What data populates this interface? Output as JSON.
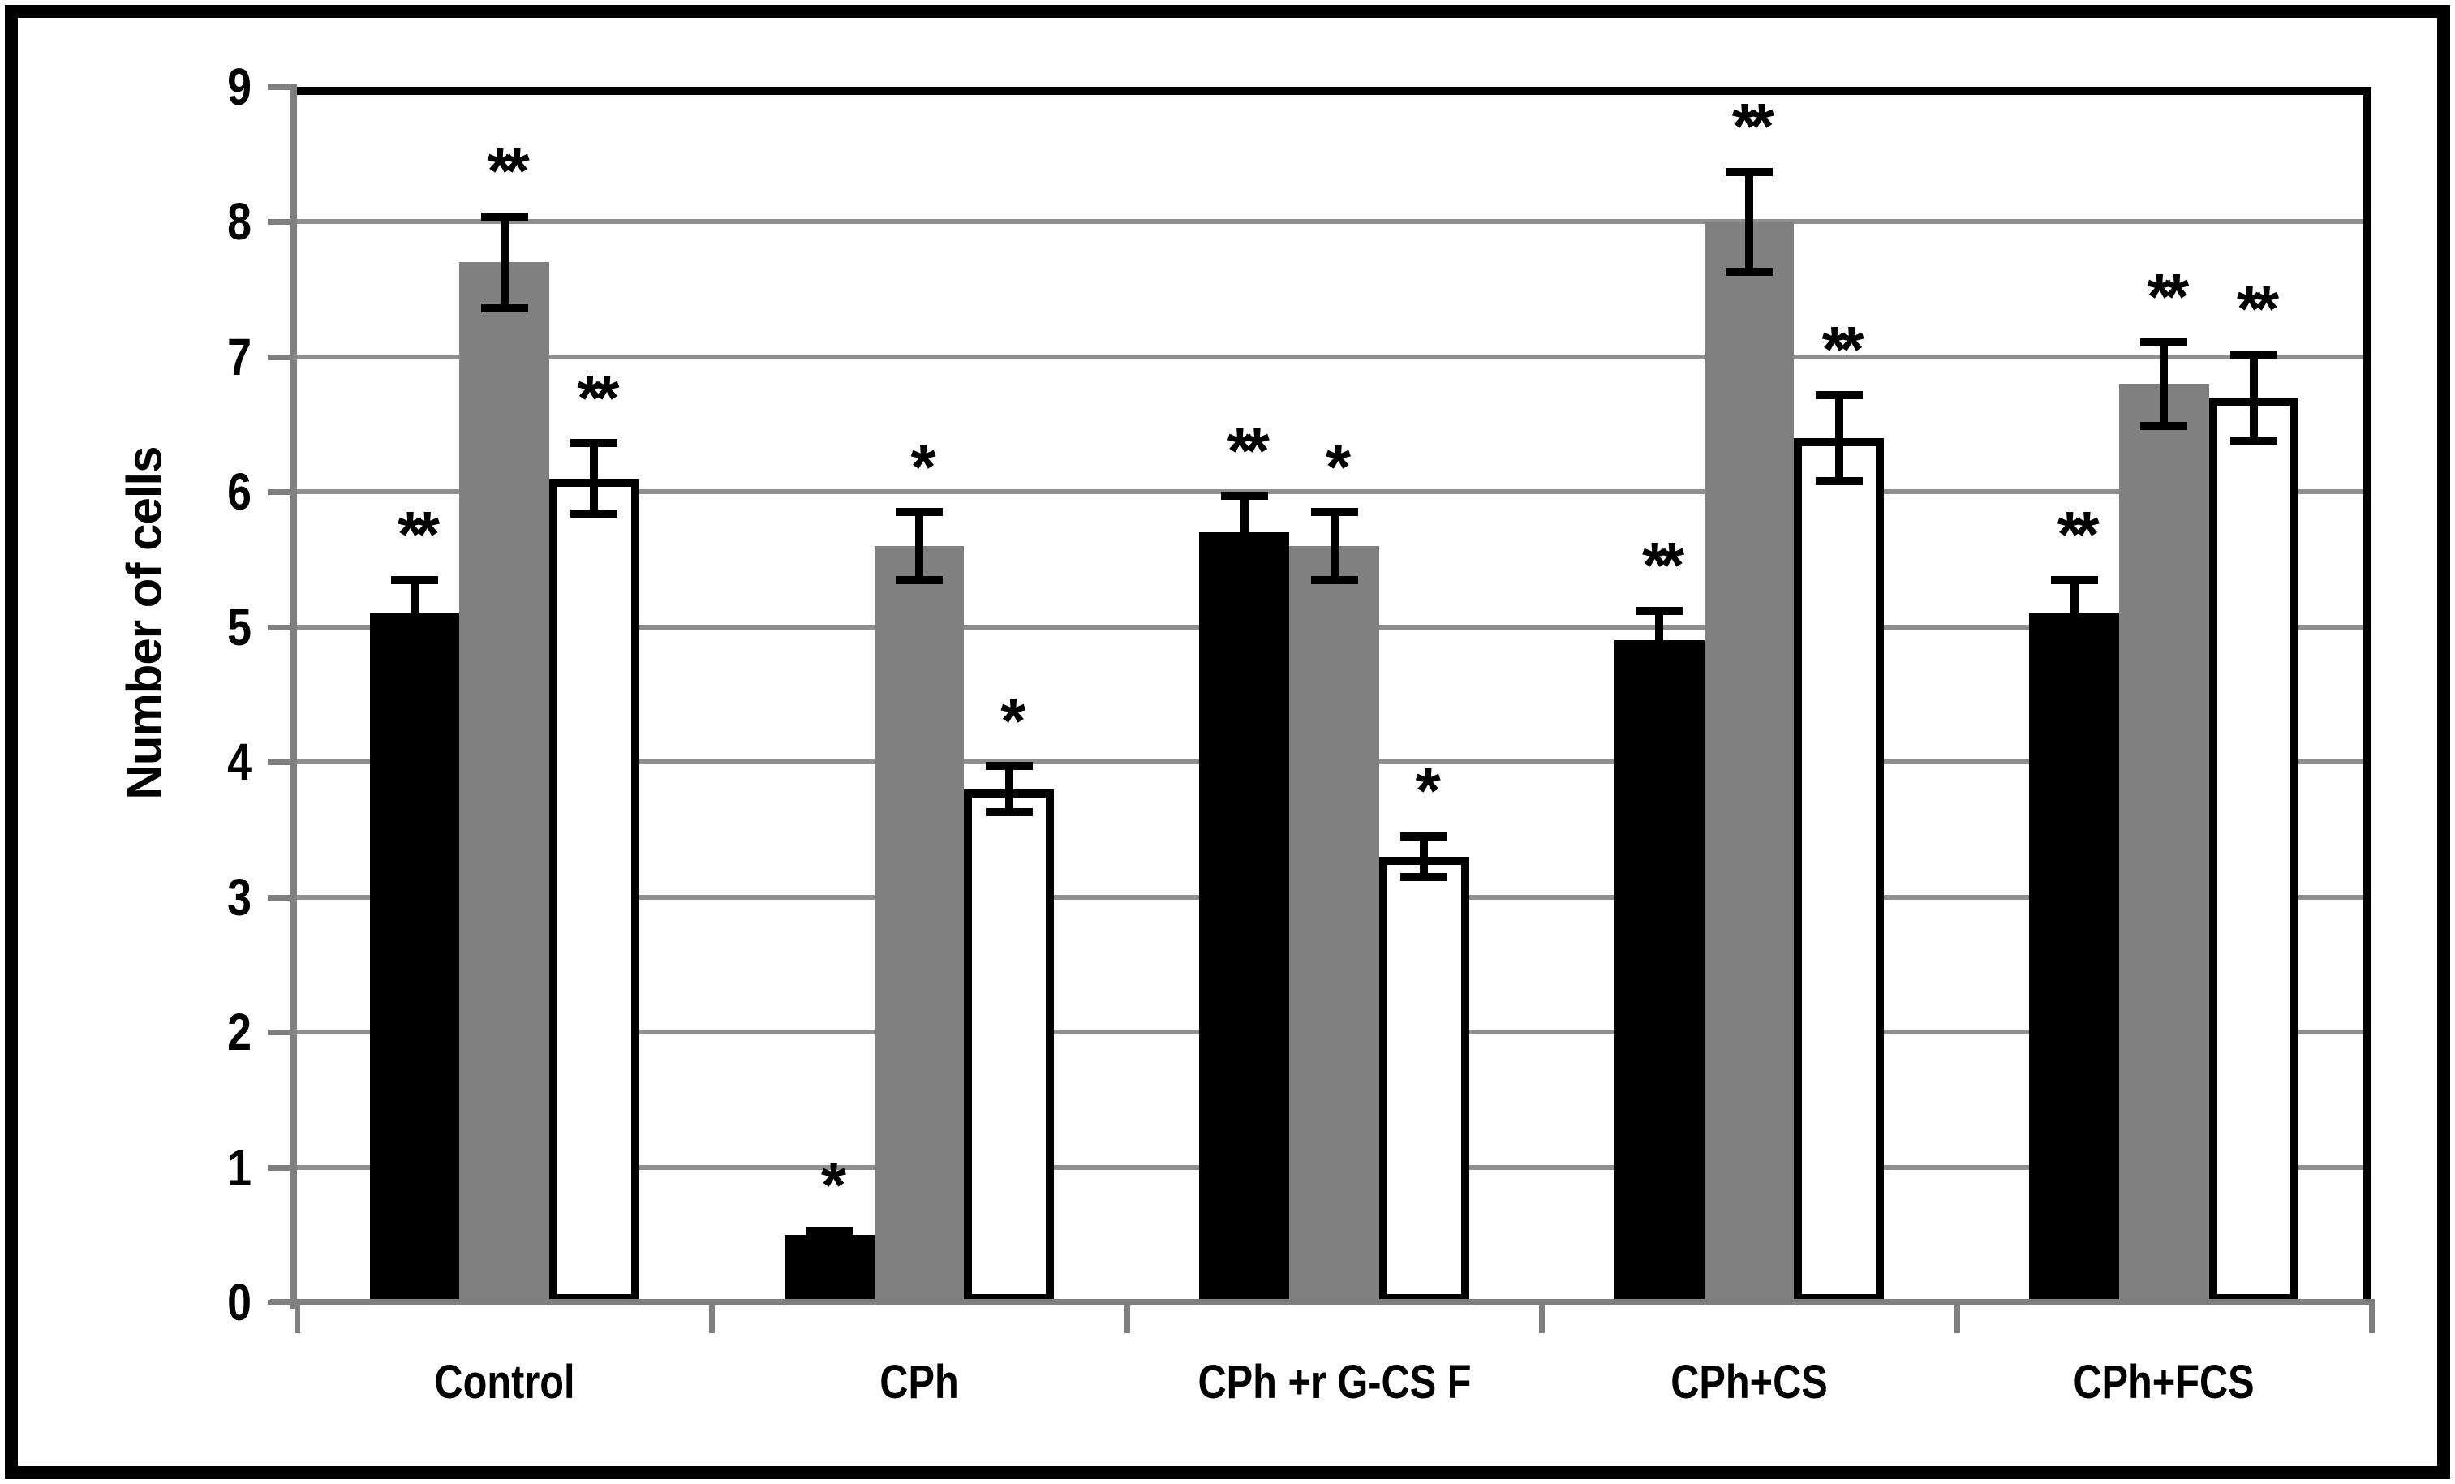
{
  "figure": {
    "border_color": "#000000",
    "background": "#ffffff"
  },
  "colors": {
    "bar_black": "#000000",
    "bar_gray": "#808080",
    "bar_white": "#ffffff",
    "bar_white_outline": "#000000",
    "gridline": "#8f8f8f",
    "axis": "#7f7f7f",
    "error_bar": "#000000",
    "text": "#000000"
  },
  "chart_data": {
    "type": "bar",
    "title": "",
    "xlabel": "",
    "ylabel": "Number of cells",
    "ylim": [
      0,
      9
    ],
    "yticks": [
      "0",
      "1",
      "2",
      "3",
      "4",
      "5",
      "6",
      "7",
      "8",
      "9"
    ],
    "grid": true,
    "legend": false,
    "categories": [
      "Control",
      "CPh",
      "CPh +r G-CS F",
      "CPh+CS",
      "CPh+FCS"
    ],
    "series": [
      {
        "name": "black-bars",
        "color": "#000000",
        "values": [
          5.1,
          0.5,
          5.7,
          4.9,
          5.1
        ],
        "errors": [
          0.28,
          0.06,
          0.3,
          0.25,
          0.28
        ],
        "significance": [
          "**",
          "*",
          "**",
          "**",
          "**"
        ]
      },
      {
        "name": "gray-bars",
        "color": "#808080",
        "values": [
          7.7,
          5.6,
          5.6,
          8.0,
          6.8
        ],
        "errors": [
          0.37,
          0.28,
          0.28,
          0.4,
          0.34
        ],
        "significance": [
          "**",
          "*",
          "*",
          "**",
          "**"
        ]
      },
      {
        "name": "white-bars",
        "color": "#ffffff",
        "values": [
          6.1,
          3.8,
          3.3,
          6.4,
          6.7
        ],
        "errors": [
          0.29,
          0.2,
          0.18,
          0.35,
          0.35
        ],
        "significance": [
          "**",
          "*",
          "*",
          "**",
          "**"
        ]
      }
    ]
  }
}
